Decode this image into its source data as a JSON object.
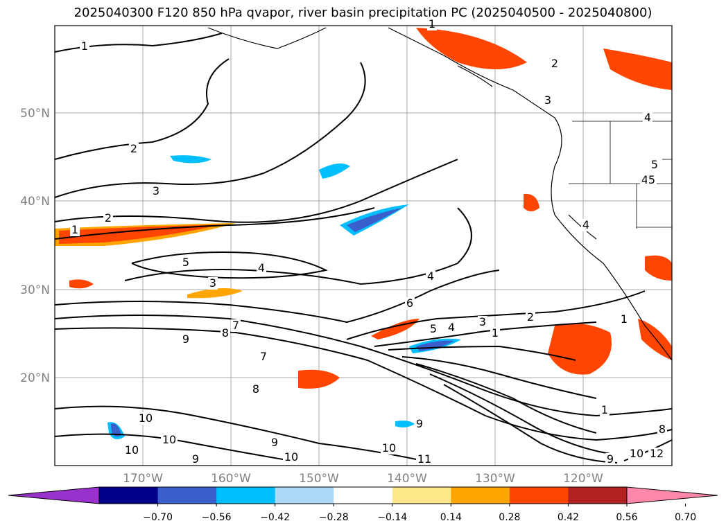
{
  "title": "2025040300 F120 850 hPa qvapor, river basin precipitation PC (2025040500 - 2025040800)",
  "map": {
    "lat_labels": [
      "50°N",
      "40°N",
      "30°N",
      "20°N"
    ],
    "lon_labels": [
      "170°W",
      "160°W",
      "150°W",
      "140°W",
      "130°W",
      "120°W"
    ],
    "lat_range": [
      10,
      60
    ],
    "lon_range": [
      -180,
      -110
    ],
    "contour_labels": [
      "1",
      "1",
      "1",
      "1",
      "1",
      "1",
      "2",
      "2",
      "2",
      "2",
      "3",
      "3",
      "3",
      "3",
      "4",
      "4",
      "4",
      "4",
      "4",
      "4",
      "5",
      "5",
      "5",
      "5",
      "6",
      "7",
      "7",
      "8",
      "8",
      "8",
      "9",
      "9",
      "9",
      "9",
      "9",
      "10",
      "10",
      "10",
      "10",
      "10",
      "10",
      "11",
      "12"
    ]
  },
  "colorbar": {
    "ticks": [
      "−0.70",
      "−0.56",
      "−0.42",
      "−0.28",
      "−0.14",
      "0.14",
      "0.28",
      "0.42",
      "0.56",
      "0.70"
    ],
    "colors": [
      "#9932cc",
      "#00008b",
      "#3a5fcd",
      "#00bfff",
      "#add8f7",
      "#ffffff",
      "#ffe88a",
      "#ffa500",
      "#ff4500",
      "#b22222",
      "#ff88aa"
    ]
  }
}
